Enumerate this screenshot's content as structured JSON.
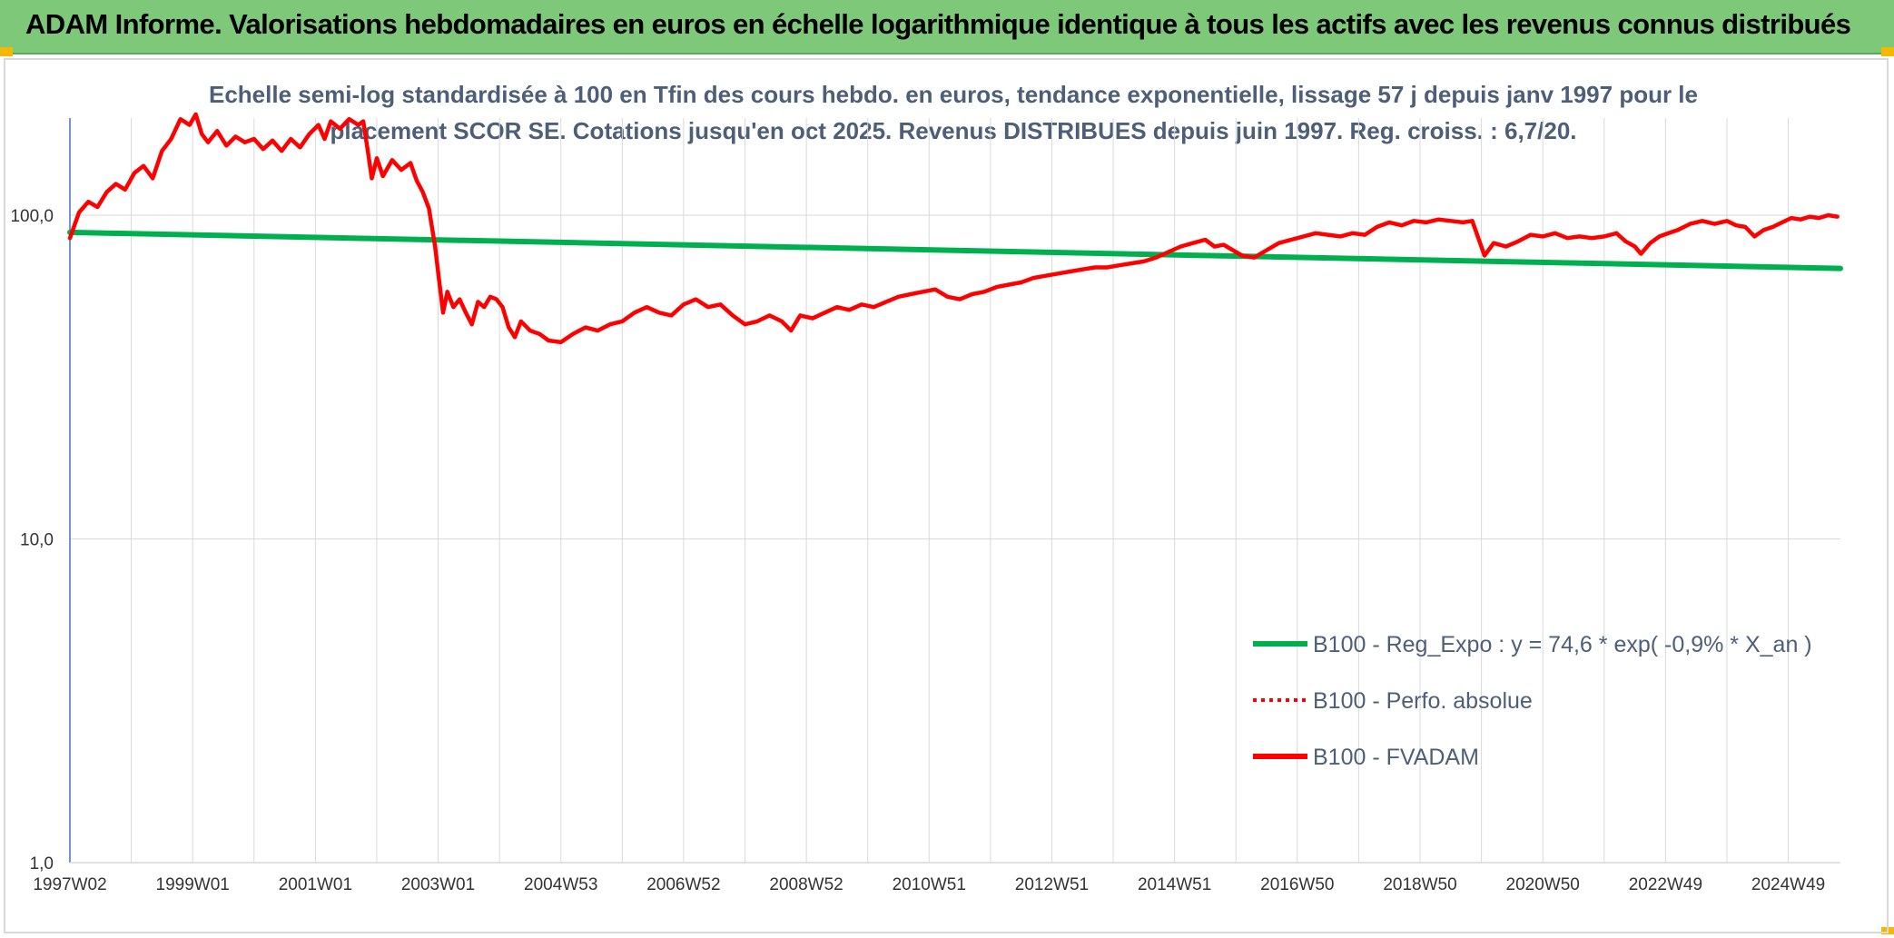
{
  "header": {
    "title": "ADAM Informe. Valorisations hebdomadaires en euros en échelle logarithmique identique à tous les actifs avec les revenus connus distribués"
  },
  "chart_data": {
    "type": "line",
    "title": "Echelle semi-log standardisée à 100 en Tfin des cours hebdo. en euros, tendance exponentielle, lissage 57 j depuis janv 1997 pour le placement SCOR SE. Cotations jusqu'en oct 2025. Revenus DISTRIBUES depuis juin 1997. Reg. croiss. : 6,7/20.",
    "xlabel": "",
    "ylabel": "",
    "y_scale": "log",
    "ylim": [
      1,
      200
    ],
    "yticks": [
      {
        "value": 1,
        "label": "1,0"
      },
      {
        "value": 10,
        "label": "10,0"
      },
      {
        "value": 100,
        "label": "100,0"
      }
    ],
    "xlim": [
      1997.0,
      2025.85
    ],
    "xticks": [
      {
        "value": 1997.0,
        "label": "1997W02"
      },
      {
        "value": 1999.0,
        "label": "1999W01"
      },
      {
        "value": 2001.0,
        "label": "2001W01"
      },
      {
        "value": 2003.0,
        "label": "2003W01"
      },
      {
        "value": 2005.0,
        "label": "2004W53"
      },
      {
        "value": 2007.0,
        "label": "2006W52"
      },
      {
        "value": 2009.0,
        "label": "2008W52"
      },
      {
        "value": 2011.0,
        "label": "2010W51"
      },
      {
        "value": 2013.0,
        "label": "2012W51"
      },
      {
        "value": 2015.0,
        "label": "2014W51"
      },
      {
        "value": 2017.0,
        "label": "2016W50"
      },
      {
        "value": 2019.0,
        "label": "2018W50"
      },
      {
        "value": 2021.0,
        "label": "2020W50"
      },
      {
        "value": 2023.0,
        "label": "2022W49"
      },
      {
        "value": 2025.0,
        "label": "2024W49"
      }
    ],
    "grid": true,
    "legend_position": "bottom-right",
    "series": [
      {
        "name": "B100 - Reg_Expo : y = 74,6 * exp( -0,9% *  X_an )",
        "color": "#00b050",
        "style": "solid",
        "points": [
          [
            1997.0,
            88.5
          ],
          [
            2025.85,
            68.5
          ]
        ]
      },
      {
        "name": "B100 - Perfo. absolue",
        "color": "#ff0000",
        "style": "dotted",
        "points": []
      },
      {
        "name": "B100 - FVADAM",
        "color": "#ff0000",
        "style": "solid",
        "points": [
          [
            1997.0,
            85
          ],
          [
            1997.15,
            102
          ],
          [
            1997.3,
            110
          ],
          [
            1997.45,
            106
          ],
          [
            1997.6,
            118
          ],
          [
            1997.75,
            125
          ],
          [
            1997.9,
            120
          ],
          [
            1998.05,
            135
          ],
          [
            1998.2,
            142
          ],
          [
            1998.35,
            130
          ],
          [
            1998.5,
            158
          ],
          [
            1998.65,
            172
          ],
          [
            1998.8,
            198
          ],
          [
            1998.95,
            190
          ],
          [
            1999.05,
            205
          ],
          [
            1999.15,
            178
          ],
          [
            1999.25,
            168
          ],
          [
            1999.4,
            182
          ],
          [
            1999.55,
            164
          ],
          [
            1999.7,
            175
          ],
          [
            1999.85,
            168
          ],
          [
            2000.0,
            172
          ],
          [
            2000.15,
            160
          ],
          [
            2000.3,
            170
          ],
          [
            2000.45,
            158
          ],
          [
            2000.6,
            172
          ],
          [
            2000.75,
            162
          ],
          [
            2000.9,
            178
          ],
          [
            2001.05,
            190
          ],
          [
            2001.15,
            172
          ],
          [
            2001.25,
            195
          ],
          [
            2001.4,
            185
          ],
          [
            2001.55,
            198
          ],
          [
            2001.7,
            190
          ],
          [
            2001.78,
            195
          ],
          [
            2001.85,
            160
          ],
          [
            2001.92,
            130
          ],
          [
            2002.0,
            150
          ],
          [
            2002.1,
            132
          ],
          [
            2002.25,
            148
          ],
          [
            2002.4,
            138
          ],
          [
            2002.55,
            145
          ],
          [
            2002.65,
            128
          ],
          [
            2002.75,
            118
          ],
          [
            2002.85,
            105
          ],
          [
            2002.95,
            80
          ],
          [
            2003.02,
            62
          ],
          [
            2003.08,
            50
          ],
          [
            2003.15,
            58
          ],
          [
            2003.25,
            52
          ],
          [
            2003.35,
            55
          ],
          [
            2003.45,
            50
          ],
          [
            2003.55,
            46
          ],
          [
            2003.65,
            54
          ],
          [
            2003.75,
            52
          ],
          [
            2003.85,
            56
          ],
          [
            2003.95,
            55
          ],
          [
            2004.05,
            52
          ],
          [
            2004.15,
            45
          ],
          [
            2004.25,
            42
          ],
          [
            2004.35,
            47
          ],
          [
            2004.5,
            44
          ],
          [
            2004.65,
            43
          ],
          [
            2004.8,
            41
          ],
          [
            2005.0,
            40.5
          ],
          [
            2005.2,
            43
          ],
          [
            2005.4,
            45
          ],
          [
            2005.6,
            44
          ],
          [
            2005.8,
            46
          ],
          [
            2006.0,
            47
          ],
          [
            2006.2,
            50
          ],
          [
            2006.4,
            52
          ],
          [
            2006.6,
            50
          ],
          [
            2006.8,
            49
          ],
          [
            2007.0,
            53
          ],
          [
            2007.2,
            55
          ],
          [
            2007.4,
            52
          ],
          [
            2007.6,
            53
          ],
          [
            2007.8,
            49
          ],
          [
            2008.0,
            46
          ],
          [
            2008.2,
            47
          ],
          [
            2008.4,
            49
          ],
          [
            2008.6,
            47
          ],
          [
            2008.75,
            44
          ],
          [
            2008.9,
            49
          ],
          [
            2009.1,
            48
          ],
          [
            2009.3,
            50
          ],
          [
            2009.5,
            52
          ],
          [
            2009.7,
            51
          ],
          [
            2009.9,
            53
          ],
          [
            2010.1,
            52
          ],
          [
            2010.3,
            54
          ],
          [
            2010.5,
            56
          ],
          [
            2010.7,
            57
          ],
          [
            2010.9,
            58
          ],
          [
            2011.1,
            59
          ],
          [
            2011.3,
            56
          ],
          [
            2011.5,
            55
          ],
          [
            2011.7,
            57
          ],
          [
            2011.9,
            58
          ],
          [
            2012.1,
            60
          ],
          [
            2012.3,
            61
          ],
          [
            2012.5,
            62
          ],
          [
            2012.7,
            64
          ],
          [
            2012.9,
            65
          ],
          [
            2013.1,
            66
          ],
          [
            2013.3,
            67
          ],
          [
            2013.5,
            68
          ],
          [
            2013.7,
            69
          ],
          [
            2013.9,
            69
          ],
          [
            2014.1,
            70
          ],
          [
            2014.3,
            71
          ],
          [
            2014.5,
            72
          ],
          [
            2014.7,
            74
          ],
          [
            2014.9,
            77
          ],
          [
            2015.1,
            80
          ],
          [
            2015.3,
            82
          ],
          [
            2015.5,
            84
          ],
          [
            2015.65,
            80
          ],
          [
            2015.8,
            81
          ],
          [
            2015.95,
            78
          ],
          [
            2016.1,
            75
          ],
          [
            2016.3,
            74
          ],
          [
            2016.5,
            78
          ],
          [
            2016.7,
            82
          ],
          [
            2016.9,
            84
          ],
          [
            2017.1,
            86
          ],
          [
            2017.3,
            88
          ],
          [
            2017.5,
            87
          ],
          [
            2017.7,
            86
          ],
          [
            2017.9,
            88
          ],
          [
            2018.1,
            87
          ],
          [
            2018.3,
            92
          ],
          [
            2018.5,
            95
          ],
          [
            2018.7,
            93
          ],
          [
            2018.9,
            96
          ],
          [
            2019.1,
            95
          ],
          [
            2019.3,
            97
          ],
          [
            2019.5,
            96
          ],
          [
            2019.7,
            95
          ],
          [
            2019.85,
            96
          ],
          [
            2019.95,
            85
          ],
          [
            2020.05,
            75
          ],
          [
            2020.2,
            82
          ],
          [
            2020.4,
            80
          ],
          [
            2020.6,
            83
          ],
          [
            2020.8,
            87
          ],
          [
            2021.0,
            86
          ],
          [
            2021.2,
            88
          ],
          [
            2021.4,
            85
          ],
          [
            2021.6,
            86
          ],
          [
            2021.8,
            85
          ],
          [
            2022.0,
            86
          ],
          [
            2022.2,
            88
          ],
          [
            2022.35,
            83
          ],
          [
            2022.5,
            80
          ],
          [
            2022.6,
            76
          ],
          [
            2022.75,
            82
          ],
          [
            2022.9,
            86
          ],
          [
            2023.05,
            88
          ],
          [
            2023.2,
            90
          ],
          [
            2023.4,
            94
          ],
          [
            2023.6,
            96
          ],
          [
            2023.8,
            94
          ],
          [
            2024.0,
            96
          ],
          [
            2024.15,
            93
          ],
          [
            2024.3,
            92
          ],
          [
            2024.45,
            86
          ],
          [
            2024.6,
            90
          ],
          [
            2024.75,
            92
          ],
          [
            2024.9,
            95
          ],
          [
            2025.05,
            98
          ],
          [
            2025.2,
            97
          ],
          [
            2025.35,
            99
          ],
          [
            2025.5,
            98
          ],
          [
            2025.65,
            100
          ],
          [
            2025.8,
            99
          ]
        ]
      }
    ]
  }
}
